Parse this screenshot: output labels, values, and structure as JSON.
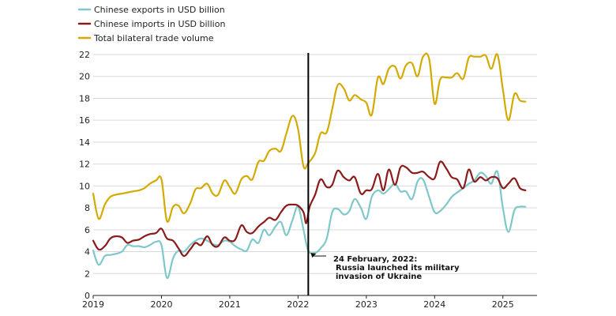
{
  "chart_data": {
    "type": "line",
    "title": "",
    "xlabel": "",
    "ylabel": "",
    "ylim": [
      0,
      22
    ],
    "y_ticks": [
      0,
      2,
      4,
      6,
      8,
      10,
      12,
      14,
      16,
      18,
      20,
      22
    ],
    "xlim": [
      2019.0,
      2025.5
    ],
    "x_ticks": [
      "2019",
      "2020",
      "2021",
      "2022",
      "2023",
      "2024",
      "2025"
    ],
    "grid": "horizontal",
    "legend_position": "top-left",
    "vertical_marker": {
      "x": 2022.15
    },
    "annotation": {
      "lines": [
        "24 February, 2022:",
        "Russia launched its military",
        "invasion of Ukraine"
      ],
      "point": {
        "x": 2022.15,
        "y": 4.1
      }
    },
    "series": [
      {
        "name": "Chinese exports in USD billion",
        "color": "#7fc8c9",
        "points": [
          [
            2019.0,
            4.1
          ],
          [
            2019.08,
            2.8
          ],
          [
            2019.17,
            3.6
          ],
          [
            2019.25,
            3.7
          ],
          [
            2019.33,
            3.8
          ],
          [
            2019.42,
            4.0
          ],
          [
            2019.5,
            4.6
          ],
          [
            2019.58,
            4.5
          ],
          [
            2019.67,
            4.5
          ],
          [
            2019.75,
            4.4
          ],
          [
            2019.83,
            4.6
          ],
          [
            2019.92,
            4.9
          ],
          [
            2020.0,
            4.6
          ],
          [
            2020.08,
            1.6
          ],
          [
            2020.17,
            3.4
          ],
          [
            2020.25,
            4.1
          ],
          [
            2020.33,
            4.0
          ],
          [
            2020.42,
            4.6
          ],
          [
            2020.5,
            5.0
          ],
          [
            2020.58,
            5.2
          ],
          [
            2020.67,
            5.0
          ],
          [
            2020.75,
            4.7
          ],
          [
            2020.83,
            4.6
          ],
          [
            2020.92,
            5.0
          ],
          [
            2021.0,
            4.9
          ],
          [
            2021.08,
            4.5
          ],
          [
            2021.17,
            4.2
          ],
          [
            2021.25,
            4.1
          ],
          [
            2021.33,
            5.1
          ],
          [
            2021.42,
            4.8
          ],
          [
            2021.5,
            6.0
          ],
          [
            2021.58,
            5.5
          ],
          [
            2021.67,
            6.3
          ],
          [
            2021.75,
            6.7
          ],
          [
            2021.83,
            5.5
          ],
          [
            2021.92,
            6.9
          ],
          [
            2022.0,
            8.1
          ],
          [
            2022.08,
            6.0
          ],
          [
            2022.15,
            4.1
          ],
          [
            2022.25,
            3.9
          ],
          [
            2022.33,
            4.3
          ],
          [
            2022.42,
            5.2
          ],
          [
            2022.5,
            7.6
          ],
          [
            2022.58,
            7.9
          ],
          [
            2022.67,
            7.4
          ],
          [
            2022.75,
            7.7
          ],
          [
            2022.83,
            8.8
          ],
          [
            2022.92,
            8.0
          ],
          [
            2023.0,
            7.0
          ],
          [
            2023.08,
            9.0
          ],
          [
            2023.17,
            9.6
          ],
          [
            2023.25,
            9.3
          ],
          [
            2023.33,
            9.7
          ],
          [
            2023.42,
            10.2
          ],
          [
            2023.5,
            9.5
          ],
          [
            2023.58,
            9.5
          ],
          [
            2023.67,
            8.8
          ],
          [
            2023.75,
            10.4
          ],
          [
            2023.83,
            10.6
          ],
          [
            2023.92,
            9.0
          ],
          [
            2024.0,
            7.6
          ],
          [
            2024.08,
            7.7
          ],
          [
            2024.17,
            8.3
          ],
          [
            2024.25,
            9.0
          ],
          [
            2024.33,
            9.4
          ],
          [
            2024.42,
            9.8
          ],
          [
            2024.5,
            10.2
          ],
          [
            2024.58,
            10.5
          ],
          [
            2024.67,
            11.2
          ],
          [
            2024.75,
            10.9
          ],
          [
            2024.83,
            10.2
          ],
          [
            2024.92,
            11.3
          ],
          [
            2025.0,
            8.0
          ],
          [
            2025.08,
            5.8
          ],
          [
            2025.17,
            7.8
          ],
          [
            2025.25,
            8.1
          ],
          [
            2025.33,
            8.1
          ]
        ]
      },
      {
        "name": "Chinese imports in USD billion",
        "color": "#8b1a1a",
        "points": [
          [
            2019.0,
            5.0
          ],
          [
            2019.08,
            4.2
          ],
          [
            2019.17,
            4.5
          ],
          [
            2019.25,
            5.2
          ],
          [
            2019.33,
            5.4
          ],
          [
            2019.42,
            5.3
          ],
          [
            2019.5,
            4.8
          ],
          [
            2019.58,
            5.0
          ],
          [
            2019.67,
            5.1
          ],
          [
            2019.75,
            5.4
          ],
          [
            2019.83,
            5.6
          ],
          [
            2019.92,
            5.7
          ],
          [
            2020.0,
            6.1
          ],
          [
            2020.08,
            5.2
          ],
          [
            2020.17,
            5.0
          ],
          [
            2020.25,
            4.3
          ],
          [
            2020.33,
            3.6
          ],
          [
            2020.42,
            4.2
          ],
          [
            2020.5,
            4.8
          ],
          [
            2020.58,
            4.6
          ],
          [
            2020.67,
            5.4
          ],
          [
            2020.75,
            4.6
          ],
          [
            2020.83,
            4.5
          ],
          [
            2020.92,
            5.3
          ],
          [
            2021.0,
            5.0
          ],
          [
            2021.08,
            5.1
          ],
          [
            2021.17,
            6.4
          ],
          [
            2021.25,
            5.8
          ],
          [
            2021.33,
            5.7
          ],
          [
            2021.42,
            6.3
          ],
          [
            2021.5,
            6.7
          ],
          [
            2021.58,
            7.1
          ],
          [
            2021.67,
            6.9
          ],
          [
            2021.75,
            7.6
          ],
          [
            2021.83,
            8.2
          ],
          [
            2021.92,
            8.3
          ],
          [
            2022.0,
            8.2
          ],
          [
            2022.08,
            7.6
          ],
          [
            2022.12,
            6.6
          ],
          [
            2022.17,
            8.1
          ],
          [
            2022.25,
            9.2
          ],
          [
            2022.33,
            10.6
          ],
          [
            2022.42,
            9.9
          ],
          [
            2022.5,
            10.1
          ],
          [
            2022.58,
            11.4
          ],
          [
            2022.67,
            10.8
          ],
          [
            2022.75,
            10.5
          ],
          [
            2022.83,
            10.8
          ],
          [
            2022.92,
            9.3
          ],
          [
            2023.0,
            9.6
          ],
          [
            2023.08,
            9.7
          ],
          [
            2023.17,
            11.1
          ],
          [
            2023.25,
            9.6
          ],
          [
            2023.33,
            11.5
          ],
          [
            2023.42,
            10.1
          ],
          [
            2023.5,
            11.7
          ],
          [
            2023.58,
            11.7
          ],
          [
            2023.67,
            11.2
          ],
          [
            2023.75,
            11.2
          ],
          [
            2023.83,
            11.3
          ],
          [
            2023.92,
            10.8
          ],
          [
            2024.0,
            10.7
          ],
          [
            2024.08,
            12.2
          ],
          [
            2024.17,
            11.6
          ],
          [
            2024.25,
            10.8
          ],
          [
            2024.33,
            10.6
          ],
          [
            2024.42,
            9.8
          ],
          [
            2024.5,
            11.5
          ],
          [
            2024.58,
            10.4
          ],
          [
            2024.67,
            10.8
          ],
          [
            2024.75,
            10.5
          ],
          [
            2024.83,
            10.8
          ],
          [
            2024.92,
            10.7
          ],
          [
            2025.0,
            9.8
          ],
          [
            2025.08,
            10.2
          ],
          [
            2025.17,
            10.7
          ],
          [
            2025.25,
            9.8
          ],
          [
            2025.33,
            9.6
          ]
        ]
      },
      {
        "name": "Total bilateral trade volume",
        "color": "#d4aa00",
        "points": [
          [
            2019.0,
            9.3
          ],
          [
            2019.08,
            7.0
          ],
          [
            2019.17,
            8.3
          ],
          [
            2019.25,
            9.0
          ],
          [
            2019.33,
            9.2
          ],
          [
            2019.42,
            9.3
          ],
          [
            2019.5,
            9.4
          ],
          [
            2019.58,
            9.5
          ],
          [
            2019.67,
            9.6
          ],
          [
            2019.75,
            9.8
          ],
          [
            2019.83,
            10.2
          ],
          [
            2019.92,
            10.5
          ],
          [
            2020.0,
            10.6
          ],
          [
            2020.08,
            6.8
          ],
          [
            2020.17,
            8.1
          ],
          [
            2020.25,
            8.2
          ],
          [
            2020.33,
            7.5
          ],
          [
            2020.42,
            8.4
          ],
          [
            2020.5,
            9.7
          ],
          [
            2020.58,
            9.8
          ],
          [
            2020.67,
            10.2
          ],
          [
            2020.75,
            9.3
          ],
          [
            2020.83,
            9.2
          ],
          [
            2020.92,
            10.5
          ],
          [
            2021.0,
            9.9
          ],
          [
            2021.08,
            9.3
          ],
          [
            2021.17,
            10.6
          ],
          [
            2021.25,
            10.9
          ],
          [
            2021.33,
            10.6
          ],
          [
            2021.42,
            12.2
          ],
          [
            2021.5,
            12.3
          ],
          [
            2021.58,
            13.2
          ],
          [
            2021.67,
            13.4
          ],
          [
            2021.75,
            13.2
          ],
          [
            2021.83,
            14.8
          ],
          [
            2021.92,
            16.4
          ],
          [
            2022.0,
            15.2
          ],
          [
            2022.08,
            11.8
          ],
          [
            2022.15,
            12.1
          ],
          [
            2022.25,
            13.0
          ],
          [
            2022.33,
            14.8
          ],
          [
            2022.42,
            14.9
          ],
          [
            2022.5,
            17.0
          ],
          [
            2022.58,
            19.2
          ],
          [
            2022.67,
            18.9
          ],
          [
            2022.75,
            17.8
          ],
          [
            2022.83,
            18.3
          ],
          [
            2022.92,
            17.9
          ],
          [
            2023.0,
            17.6
          ],
          [
            2023.08,
            16.5
          ],
          [
            2023.17,
            19.9
          ],
          [
            2023.25,
            19.3
          ],
          [
            2023.33,
            20.7
          ],
          [
            2023.42,
            20.9
          ],
          [
            2023.5,
            19.8
          ],
          [
            2023.58,
            21.0
          ],
          [
            2023.67,
            21.2
          ],
          [
            2023.75,
            20.0
          ],
          [
            2023.83,
            21.8
          ],
          [
            2023.92,
            21.6
          ],
          [
            2024.0,
            17.5
          ],
          [
            2024.08,
            19.7
          ],
          [
            2024.17,
            19.9
          ],
          [
            2024.25,
            19.9
          ],
          [
            2024.33,
            20.3
          ],
          [
            2024.42,
            19.8
          ],
          [
            2024.5,
            21.7
          ],
          [
            2024.58,
            21.8
          ],
          [
            2024.67,
            21.8
          ],
          [
            2024.75,
            21.9
          ],
          [
            2024.83,
            20.7
          ],
          [
            2024.92,
            22.0
          ],
          [
            2025.0,
            18.8
          ],
          [
            2025.08,
            16.0
          ],
          [
            2025.17,
            18.4
          ],
          [
            2025.25,
            17.8
          ],
          [
            2025.33,
            17.7
          ]
        ]
      }
    ]
  }
}
